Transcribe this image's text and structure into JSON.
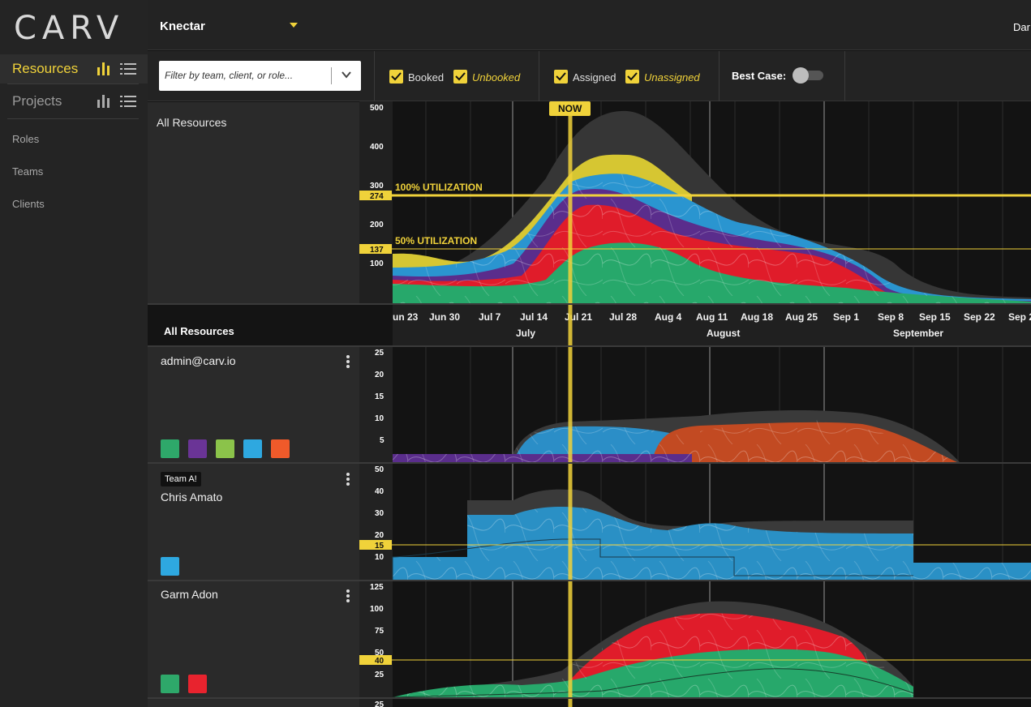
{
  "app": {
    "logo": "CARV",
    "org": "Knectar",
    "user": "Dar"
  },
  "sidebar": {
    "main": [
      {
        "label": "Resources",
        "active": true
      },
      {
        "label": "Projects",
        "active": false
      }
    ],
    "sub": [
      "Roles",
      "Teams",
      "Clients"
    ]
  },
  "filters": {
    "placeholder": "Filter by team, client, or role...",
    "booked": "Booked",
    "unbooked": "Unbooked",
    "assigned": "Assigned",
    "unassigned": "Unassigned",
    "best_case": "Best Case:"
  },
  "summary": {
    "title": "All Resources",
    "axis_title": "All Resources",
    "y_ticks": [
      "500",
      "400",
      "300",
      "200",
      "100"
    ],
    "badges": [
      "274",
      "137"
    ],
    "util_labels": [
      "100% UTILIZATION",
      "50% UTILIZATION"
    ],
    "now_label": "NOW"
  },
  "timeline": {
    "dates": [
      "un 23",
      "Jun 30",
      "Jul 7",
      "Jul 14",
      "Jul 21",
      "Jul 28",
      "Aug 4",
      "Aug 11",
      "Aug 18",
      "Aug 25",
      "Sep 1",
      "Sep 8",
      "Sep 15",
      "Sep 22",
      "Sep 2"
    ],
    "months": [
      "July",
      "August",
      "September"
    ]
  },
  "resources": [
    {
      "name": "admin@carv.io",
      "team": "",
      "y_ticks": [
        "25",
        "20",
        "15",
        "10",
        "5"
      ],
      "badge": "",
      "colors": [
        "#2ea86a",
        "#6a3496",
        "#8bc34a",
        "#2ea8e0",
        "#f05a2a"
      ]
    },
    {
      "name": "Chris Amato",
      "team": "Team A!",
      "y_ticks": [
        "50",
        "40",
        "30",
        "20",
        "10"
      ],
      "badge": "15",
      "colors": [
        "#2ea8e0"
      ]
    },
    {
      "name": "Garm Adon",
      "team": "",
      "y_ticks": [
        "125",
        "100",
        "75",
        "50",
        "25"
      ],
      "badge": "40",
      "colors": [
        "#2ea86a",
        "#e8232e"
      ]
    }
  ],
  "next_row_tick": "25",
  "colors": {
    "accent": "#f0d23a",
    "green": "#27a86b",
    "red": "#e01c2a",
    "purple": "#5c2e8f",
    "blue": "#2798d0",
    "orange": "#d0552a",
    "grey": "#3a3a3a"
  }
}
